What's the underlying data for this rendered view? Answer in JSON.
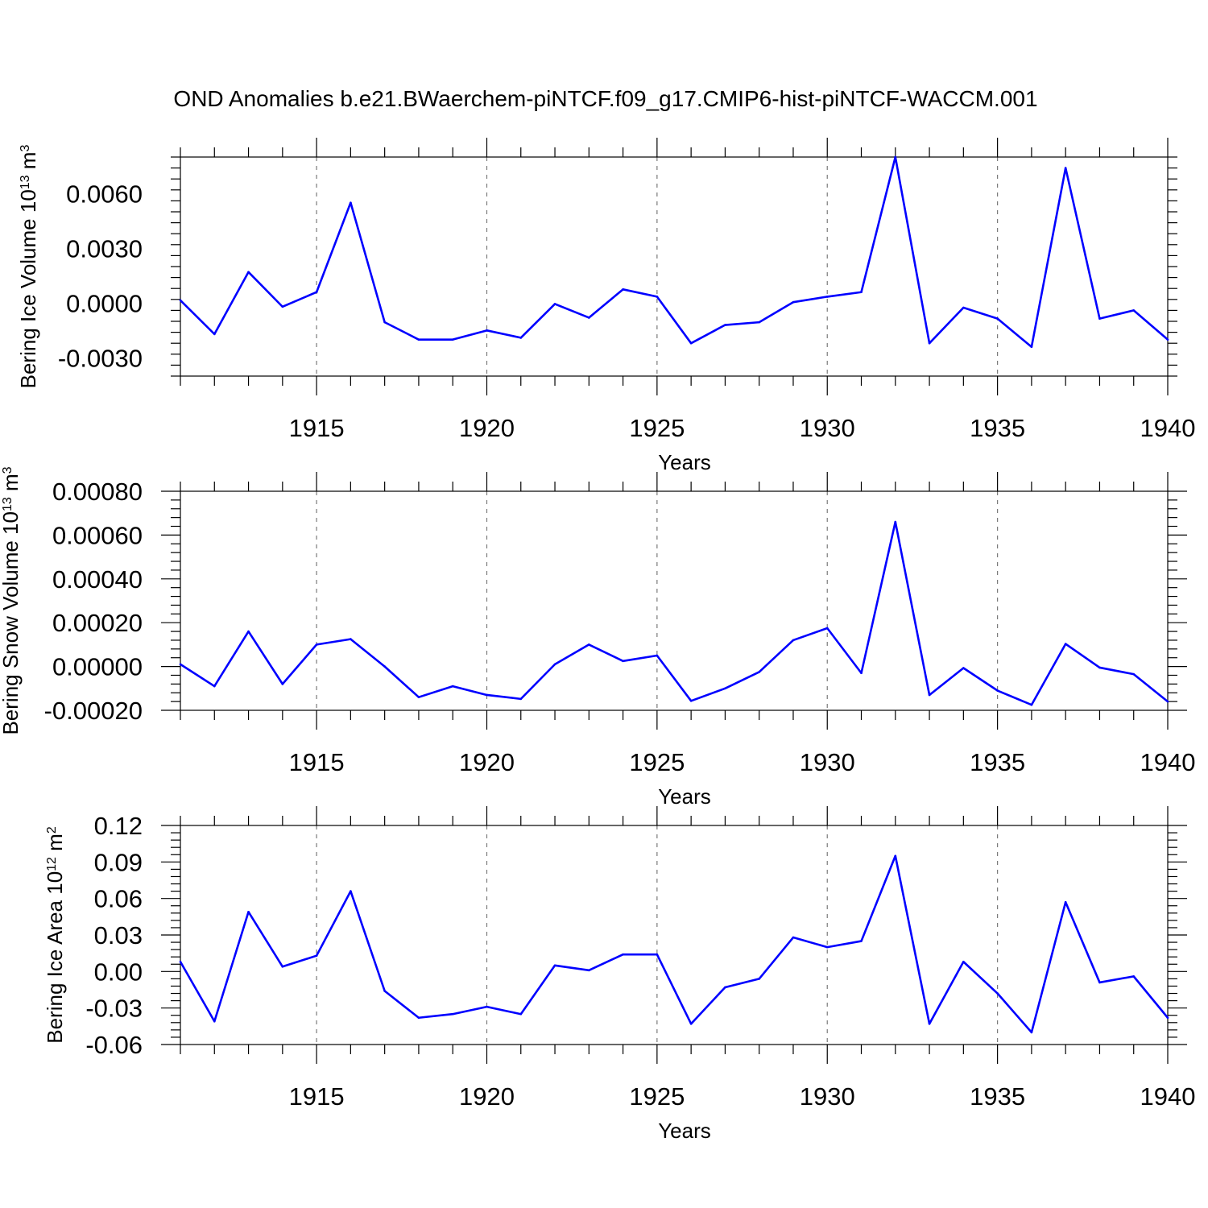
{
  "title": "OND Anomalies b.e21.BWaerchem-piNTCF.f09_g17.CMIP6-hist-piNTCF-WACCM.001",
  "line_color": "#0000ff",
  "chart_data": [
    {
      "type": "line",
      "ylabel": {
        "text": "Bering Ice Volume 10",
        "exp": "13",
        "unit": " m",
        "unit_exp": "3"
      },
      "xlabel": "Years",
      "x": [
        1911,
        1912,
        1913,
        1914,
        1915,
        1916,
        1917,
        1918,
        1919,
        1920,
        1921,
        1922,
        1923,
        1924,
        1925,
        1926,
        1927,
        1928,
        1929,
        1930,
        1931,
        1932,
        1933,
        1934,
        1935,
        1936,
        1937,
        1938,
        1939,
        1940
      ],
      "y": [
        0.00015,
        -0.0017,
        0.0017,
        -0.0002,
        0.0006,
        0.0055,
        -0.00105,
        -0.002,
        -0.002,
        -0.0015,
        -0.0019,
        -5e-05,
        -0.0008,
        0.00075,
        0.00035,
        -0.0022,
        -0.0012,
        -0.00105,
        5e-05,
        0.00035,
        0.0006,
        0.008,
        -0.0022,
        -0.00025,
        -0.00085,
        -0.0024,
        0.0074,
        -0.00085,
        -0.0004,
        -0.002
      ],
      "xlim": [
        1911,
        1940
      ],
      "ylim": [
        -0.004,
        0.008
      ],
      "xticks": [
        1915,
        1920,
        1925,
        1930,
        1935,
        1940
      ],
      "xtick_labels": [
        "1915",
        "1920",
        "1925",
        "1930",
        "1935",
        "1940"
      ],
      "yticks": [
        0.006,
        0.003,
        0.0,
        -0.003
      ],
      "ytick_labels": [
        "0.0060",
        "0.0030",
        "0.0000",
        "-0.0030"
      ],
      "grid": "vertical dashed"
    },
    {
      "type": "line",
      "ylabel": {
        "text": "Bering Snow Volume 10",
        "exp": "13",
        "unit": " m",
        "unit_exp": "3"
      },
      "xlabel": "Years",
      "x": [
        1911,
        1912,
        1913,
        1914,
        1915,
        1916,
        1917,
        1918,
        1919,
        1920,
        1921,
        1922,
        1923,
        1924,
        1925,
        1926,
        1927,
        1928,
        1929,
        1930,
        1931,
        1932,
        1933,
        1934,
        1935,
        1936,
        1937,
        1938,
        1939,
        1940
      ],
      "y": [
        1e-05,
        -9e-05,
        0.00016,
        -8e-05,
        0.0001,
        0.000125,
        0.0,
        -0.00014,
        -9e-05,
        -0.00013,
        -0.000148,
        1e-05,
        0.0001,
        2.5e-05,
        5e-05,
        -0.000157,
        -0.0001,
        -2.5e-05,
        0.00012,
        0.000175,
        -3e-05,
        0.00066,
        -0.00013,
        -7e-06,
        -0.00011,
        -0.000175,
        0.000103,
        -5e-06,
        -3.5e-05,
        -0.00016
      ],
      "xlim": [
        1911,
        1940
      ],
      "ylim": [
        -0.0002,
        0.0008
      ],
      "xticks": [
        1915,
        1920,
        1925,
        1930,
        1935,
        1940
      ],
      "xtick_labels": [
        "1915",
        "1920",
        "1925",
        "1930",
        "1935",
        "1940"
      ],
      "yticks": [
        0.0008,
        0.0006,
        0.0004,
        0.0002,
        0.0,
        -0.0002
      ],
      "ytick_labels": [
        "0.00080",
        "0.00060",
        "0.00040",
        "0.00020",
        "0.00000",
        "-0.00020"
      ],
      "grid": "vertical dashed"
    },
    {
      "type": "line",
      "ylabel": {
        "text": "Bering Ice Area 10",
        "exp": "12",
        "unit": " m",
        "unit_exp": "2"
      },
      "xlabel": "Years",
      "x": [
        1911,
        1912,
        1913,
        1914,
        1915,
        1916,
        1917,
        1918,
        1919,
        1920,
        1921,
        1922,
        1923,
        1924,
        1925,
        1926,
        1927,
        1928,
        1929,
        1930,
        1931,
        1932,
        1933,
        1934,
        1935,
        1936,
        1937,
        1938,
        1939,
        1940
      ],
      "y": [
        0.008,
        -0.041,
        0.049,
        0.004,
        0.013,
        0.066,
        -0.016,
        -0.038,
        -0.035,
        -0.029,
        -0.035,
        0.005,
        0.001,
        0.014,
        0.014,
        -0.043,
        -0.013,
        -0.006,
        0.028,
        0.02,
        0.025,
        0.095,
        -0.043,
        0.008,
        -0.018,
        -0.05,
        0.057,
        -0.009,
        -0.004,
        -0.038
      ],
      "xlim": [
        1911,
        1940
      ],
      "ylim": [
        -0.06,
        0.12
      ],
      "xticks": [
        1915,
        1920,
        1925,
        1930,
        1935,
        1940
      ],
      "xtick_labels": [
        "1915",
        "1920",
        "1925",
        "1930",
        "1935",
        "1940"
      ],
      "yticks": [
        0.12,
        0.09,
        0.06,
        0.03,
        0.0,
        -0.03,
        -0.06
      ],
      "ytick_labels": [
        "0.12",
        "0.09",
        "0.06",
        "0.03",
        "0.00",
        "-0.03",
        "-0.06"
      ],
      "grid": "vertical dashed"
    }
  ]
}
